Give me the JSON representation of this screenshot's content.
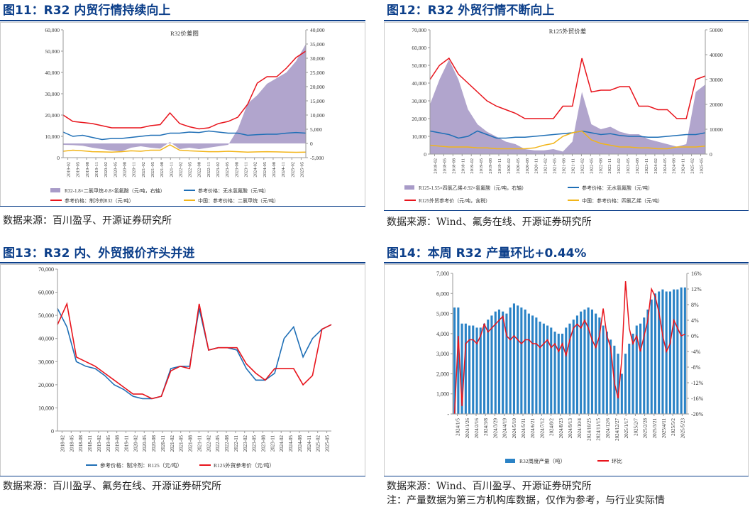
{
  "panels": [
    {
      "title": "图11：R32 内贸行情持续向上",
      "source": "数据来源：百川盈孚、开源证券研究所"
    },
    {
      "title": "图12：R32 外贸行情不断向上",
      "source": "数据来源：Wind、氟务在线、开源证券研究所"
    },
    {
      "title": "图13：R32 内、外贸报价齐头并进",
      "source": "数据来源：百川盈孚、氟务在线、开源证券研究所"
    },
    {
      "title": "图14：本周 R32 产量环比+0.44%",
      "source": "数据来源：Wind、百川盈孚、开源证券研究所",
      "note": "注：产量数据为第三方机构库数据，仅作为参考，与行业实际情"
    }
  ],
  "colors": {
    "title": "#0c3f8a",
    "purple": "#a89bc8",
    "red": "#e8141c",
    "blue": "#1f6fb6",
    "yellow": "#f2b51a",
    "bar": "#2b83c6"
  },
  "chart_data": [
    {
      "type": "area",
      "title": "R32价差图",
      "x_ticks": [
        "2019-02",
        "2019-05",
        "2019-08",
        "2019-11",
        "2020-02",
        "2020-05",
        "2020-08",
        "2020-11",
        "2021-02",
        "2021-05",
        "2021-08",
        "2021-11",
        "2022-02",
        "2022-05",
        "2022-08",
        "2022-11",
        "2023-02",
        "2023-05",
        "2023-08",
        "2023-11",
        "2024-02",
        "2024-05",
        "2024-08",
        "2024-11",
        "2025-02",
        "2025-05"
      ],
      "y_ticks": [
        "0",
        "10,000",
        "20,000",
        "30,000",
        "40,000",
        "50,000",
        "60,000"
      ],
      "y2_ticks": [
        "-5,000",
        "0",
        "5,000",
        "10,000",
        "15,000",
        "20,000",
        "25,000",
        "30,000",
        "35,000",
        "40,000"
      ],
      "ylim": [
        0,
        60000
      ],
      "y2lim": [
        -5000,
        40000
      ],
      "legend": [
        "R32-1.8×二氯甲烷-0.8×氢氟酸（元/吨，右轴）",
        "参考价格：无水氢氟酸（元/吨）",
        "参考价格：制冷剂R32（元/吨）",
        "中国：参考价格：二氯甲烷（元/吨）"
      ],
      "x": [
        0,
        1,
        2,
        3,
        4,
        5,
        6,
        7,
        8,
        9,
        10,
        11,
        12,
        13,
        14,
        15,
        16,
        17,
        18,
        19,
        20,
        21,
        22,
        23,
        24,
        25
      ],
      "series": [
        {
          "name": "R32-1.8×二氯甲烷-0.8×氢氟酸（元/吨，右轴）",
          "axis": "right",
          "kind": "area",
          "values": [
            -500,
            -600,
            -800,
            -1500,
            -2000,
            -2500,
            -2800,
            -1500,
            -1000,
            -1500,
            -1800,
            500,
            -2000,
            -1500,
            -2000,
            -1500,
            -1000,
            -500,
            5000,
            14000,
            17000,
            21000,
            23000,
            25000,
            29000,
            35000
          ]
        },
        {
          "name": "参考价格：无水氢氟酸（元/吨）",
          "axis": "left",
          "kind": "line",
          "values": [
            12000,
            10000,
            10500,
            9500,
            8500,
            9000,
            9000,
            9500,
            10000,
            10500,
            10500,
            11500,
            11500,
            12000,
            11800,
            12500,
            12000,
            11500,
            11500,
            10500,
            10800,
            11000,
            11000,
            11500,
            11800,
            11500
          ]
        },
        {
          "name": "参考价格：制冷剂R32（元/吨）",
          "axis": "left",
          "kind": "line",
          "values": [
            20000,
            17000,
            16500,
            16000,
            15000,
            14000,
            14000,
            14000,
            14000,
            15000,
            15500,
            21000,
            16000,
            14500,
            13500,
            14000,
            16000,
            17000,
            19000,
            25000,
            35000,
            38000,
            38000,
            42000,
            47000,
            50000
          ]
        },
        {
          "name": "中国：参考价格：二氯甲烷（元/吨）",
          "axis": "left",
          "kind": "line",
          "values": [
            3000,
            3500,
            3200,
            2800,
            2700,
            2600,
            2800,
            3200,
            3000,
            3500,
            3500,
            6000,
            3500,
            3200,
            3000,
            2800,
            2800,
            3000,
            2800,
            2600,
            2700,
            2800,
            2700,
            2600,
            2500,
            2600
          ]
        }
      ]
    },
    {
      "type": "area",
      "title": "R125外贸价差",
      "x_ticks": [
        "2018-02",
        "2018-05",
        "2018-08",
        "2018-11",
        "2019-02",
        "2019-05",
        "2019-08",
        "2019-11",
        "2020-02",
        "2020-05",
        "2020-08",
        "2020-11",
        "2021-02",
        "2021-05",
        "2021-08",
        "2021-11",
        "2022-02",
        "2022-05",
        "2022-08",
        "2022-11",
        "2023-02",
        "2023-05",
        "2023-08",
        "2023-11",
        "2024-02",
        "2024-05",
        "2024-08",
        "2024-11",
        "2025-02",
        "2025-05"
      ],
      "y_ticks": [
        "0",
        "10,000",
        "20,000",
        "30,000",
        "40,000",
        "50,000",
        "60,000",
        "70,000"
      ],
      "y2_ticks": [
        "0",
        "10000",
        "20000",
        "30000",
        "40000",
        "50000"
      ],
      "ylim": [
        0,
        70000
      ],
      "y2lim": [
        0,
        50000
      ],
      "legend": [
        "R125-1.55×四氯乙烯-0.92×氢氟酸（元/吨，右轴）",
        "参考价格：无水氢氟酸（元/吨）",
        "R125外贸参考价（元/吨，含税）",
        "中国：参考价格：四氯乙烯（元/吨）"
      ],
      "x": [
        0,
        1,
        2,
        3,
        4,
        5,
        6,
        7,
        8,
        9,
        10,
        11,
        12,
        13,
        14,
        15,
        16,
        17,
        18,
        19,
        20,
        21,
        22,
        23,
        24,
        25,
        26,
        27,
        28,
        29
      ],
      "series": [
        {
          "name": "R125-1.55×四氯乙烯-0.92×氢氟酸（元/吨，右轴）",
          "axis": "right",
          "kind": "area",
          "values": [
            20000,
            30000,
            38000,
            30000,
            18000,
            12000,
            9000,
            7000,
            5000,
            4000,
            2000,
            1500,
            1500,
            2000,
            1000,
            5000,
            25000,
            12000,
            10000,
            11000,
            9000,
            8000,
            8000,
            6000,
            5000,
            4000,
            3000,
            4000,
            25000,
            28000
          ]
        },
        {
          "name": "参考价格：无水氢氟酸（元/吨）",
          "axis": "left",
          "kind": "line",
          "values": [
            13000,
            12000,
            11000,
            9000,
            10000,
            13000,
            11000,
            9000,
            9000,
            9500,
            9500,
            10000,
            10500,
            11000,
            11500,
            12000,
            13000,
            12000,
            11000,
            11500,
            10500,
            10000,
            10000,
            9500,
            9500,
            10000,
            10500,
            11000,
            11000,
            12000
          ]
        },
        {
          "name": "R125外贸参考价（元/吨，含税）",
          "axis": "left",
          "kind": "line",
          "values": [
            42000,
            50000,
            54000,
            45000,
            40000,
            35000,
            30000,
            27000,
            25000,
            23000,
            20000,
            20000,
            20000,
            20000,
            27000,
            27000,
            54000,
            35000,
            36000,
            36000,
            38000,
            38000,
            27000,
            27000,
            25000,
            25000,
            20000,
            20000,
            42000,
            44000
          ]
        },
        {
          "name": "中国：参考价格：四氯乙烯（元/吨）",
          "axis": "left",
          "kind": "line",
          "values": [
            5000,
            4500,
            4000,
            4000,
            4000,
            3500,
            3500,
            3000,
            3000,
            3000,
            3000,
            3500,
            5000,
            6000,
            10000,
            12000,
            13000,
            8000,
            6000,
            5000,
            4000,
            4000,
            3500,
            3500,
            3000,
            3000,
            4000,
            4000,
            4000,
            4500
          ]
        }
      ]
    },
    {
      "type": "line",
      "x_ticks": [
        "2018-02",
        "2018-05",
        "2018-08",
        "2018-11",
        "2019-02",
        "2019-05",
        "2019-08",
        "2019-11",
        "2020-02",
        "2020-05",
        "2020-08",
        "2020-11",
        "2021-02",
        "2021-05",
        "2021-08",
        "2021-11",
        "2022-02",
        "2022-05",
        "2022-08",
        "2022-11",
        "2023-02",
        "2023-05",
        "2023-08",
        "2023-11",
        "2024-02",
        "2024-05",
        "2024-08",
        "2024-11",
        "2025-02",
        "2025-05"
      ],
      "y_ticks": [
        "0",
        "10,000",
        "20,000",
        "30,000",
        "40,000",
        "50,000",
        "60,000",
        "70,000"
      ],
      "ylim": [
        0,
        70000
      ],
      "legend": [
        "参考价格：制冷剂：R125（元/吨）",
        "R125外贸参考价（元/吨）"
      ],
      "x": [
        0,
        1,
        2,
        3,
        4,
        5,
        6,
        7,
        8,
        9,
        10,
        11,
        12,
        13,
        14,
        15,
        16,
        17,
        18,
        19,
        20,
        21,
        22,
        23,
        24,
        25,
        26,
        27,
        28,
        29
      ],
      "series": [
        {
          "name": "参考价格：制冷剂：R125（元/吨）",
          "values": [
            53000,
            45000,
            30000,
            28000,
            27000,
            24000,
            20000,
            18000,
            15000,
            14000,
            14000,
            15000,
            27000,
            28000,
            28000,
            53000,
            35000,
            36000,
            36000,
            35000,
            27000,
            22000,
            22000,
            25000,
            40000,
            45000,
            32000,
            40000,
            44000,
            46000
          ]
        },
        {
          "name": "R125外贸参考价（元/吨）",
          "values": [
            46000,
            55000,
            32000,
            30000,
            28000,
            25000,
            22000,
            19000,
            16000,
            16000,
            14000,
            15000,
            26000,
            28000,
            27000,
            55000,
            35000,
            36000,
            36000,
            36000,
            29000,
            25000,
            22000,
            27000,
            27000,
            27000,
            20000,
            24000,
            44000,
            46000
          ]
        }
      ]
    },
    {
      "type": "bar",
      "x_ticks": [
        "2024/1/5",
        "2024/1/26",
        "2024/2/16",
        "2024/3/8",
        "2024/3/29",
        "2024/4/19",
        "2024/5/10",
        "2024/5/31",
        "2024/6/21",
        "2024/7/12",
        "2024/8/2",
        "2024/8/23",
        "2024/9/13",
        "2024/10/4",
        "2024/10/25",
        "2024/11/15",
        "2024/12/6",
        "2024/12/27",
        "2025/1/17",
        "2025/2/7",
        "2025/2/28",
        "2025/3/21",
        "2025/4/11",
        "2025/5/2",
        "2025/5/23"
      ],
      "y_ticks": [
        "-",
        "1,000",
        "2,000",
        "3,000",
        "4,000",
        "5,000",
        "6,000",
        "7,000"
      ],
      "y2_ticks": [
        "-20%",
        "-16%",
        "-12%",
        "-8%",
        "-4%",
        "0%",
        "4%",
        "8%",
        "12%",
        "16%"
      ],
      "ylim": [
        0,
        7000
      ],
      "y2lim": [
        -20,
        16
      ],
      "legend": [
        "R32周度产量（吨）",
        "环比"
      ],
      "series": [
        {
          "name": "R32周度产量（吨）",
          "kind": "bar",
          "values": [
            5300,
            5300,
            4500,
            4500,
            4400,
            4400,
            4300,
            4300,
            4500,
            4700,
            4900,
            5100,
            5200,
            5100,
            5000,
            5300,
            5500,
            5400,
            5300,
            5200,
            5000,
            4900,
            4800,
            4600,
            4500,
            4400,
            4300,
            4100,
            4000,
            4000,
            4300,
            4500,
            4700,
            4900,
            5100,
            5200,
            5300,
            5200,
            5000,
            4800,
            4400,
            4100,
            3700,
            3400,
            3000,
            2000,
            3000,
            3500,
            4000,
            4400,
            4500,
            4800,
            5200,
            5700,
            6000,
            6100,
            6200,
            6100,
            6100,
            6200,
            6200,
            6300,
            6300
          ]
        },
        {
          "name": "环比",
          "kind": "line",
          "values": [
            -20,
            0,
            -18,
            -2,
            -1,
            -1,
            -2,
            0,
            3,
            1,
            2,
            3,
            4,
            5,
            0,
            -1,
            0,
            -1,
            -2,
            -1,
            -1,
            -2,
            -2,
            -3,
            -2,
            -1,
            -3,
            -2,
            -4,
            -2,
            -5,
            -1,
            2,
            3,
            2,
            4,
            2,
            -1,
            -3,
            0,
            7,
            0,
            -3,
            -12,
            -16,
            -6,
            14,
            2,
            -2,
            0,
            -4,
            0,
            4,
            12,
            10,
            6,
            0,
            -4,
            -2,
            4,
            2,
            0,
            0.44
          ]
        }
      ]
    }
  ]
}
